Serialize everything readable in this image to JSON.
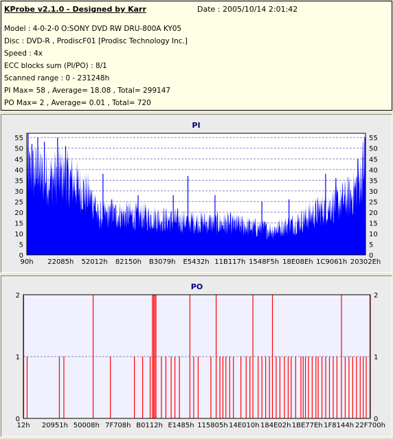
{
  "header": {
    "app_title": "KProbe v2.1.0 - Designed by Karr",
    "date": "Date : 2005/10/14 2:01:42",
    "lines": [
      "Model : 4-0-2-0 O:SONY    DVD RW DRU-800A  KY05",
      "Disc : DVD-R , ProdiscF01 [Prodisc Technology Inc.]",
      "Speed : 4x",
      "ECC blocks sum (PI/PO) : 8/1",
      "Scanned range : 0 - 231248h",
      "PI Max= 58 , Average= 18.08 , Total= 299147",
      "PO Max= 2 , Average= 0.01 , Total= 720"
    ]
  },
  "colors": {
    "pi_fill": "#0000ff",
    "po_bar": "#ff0000",
    "grid": "#8888c0",
    "plot_bg_po": "#f0f0ff",
    "title": "#000080"
  },
  "chart_data": [
    {
      "type": "area",
      "title": "PI",
      "xlabel": "",
      "ylabel": "",
      "ylim": [
        0,
        57
      ],
      "yticks": [
        0,
        5,
        10,
        15,
        20,
        25,
        30,
        35,
        40,
        45,
        50,
        55
      ],
      "x_tick_labels": [
        "90h",
        "22085h",
        "52012h",
        "82150h",
        "B3079h",
        "E5432h",
        "11B117h",
        "1548F5h",
        "18E08Eh",
        "1C9061h",
        "20302Eh"
      ],
      "x_range": [
        0,
        231248
      ],
      "grid": "horizontal dashed",
      "profile": [
        {
          "x": 0,
          "y": 44
        },
        {
          "x": 8000,
          "y": 42
        },
        {
          "x": 16000,
          "y": 40
        },
        {
          "x": 24000,
          "y": 42
        },
        {
          "x": 30000,
          "y": 39
        },
        {
          "x": 36000,
          "y": 35
        },
        {
          "x": 42000,
          "y": 31
        },
        {
          "x": 47000,
          "y": 27
        },
        {
          "x": 48000,
          "y": 20
        },
        {
          "x": 60000,
          "y": 21
        },
        {
          "x": 80000,
          "y": 20
        },
        {
          "x": 100000,
          "y": 18
        },
        {
          "x": 120000,
          "y": 17
        },
        {
          "x": 140000,
          "y": 16
        },
        {
          "x": 158000,
          "y": 14
        },
        {
          "x": 168000,
          "y": 13
        },
        {
          "x": 176000,
          "y": 15
        },
        {
          "x": 185000,
          "y": 17
        },
        {
          "x": 195000,
          "y": 21
        },
        {
          "x": 205000,
          "y": 25
        },
        {
          "x": 215000,
          "y": 28
        },
        {
          "x": 222000,
          "y": 31
        },
        {
          "x": 228000,
          "y": 40
        },
        {
          "x": 231248,
          "y": 52
        }
      ],
      "peaks": [
        {
          "x": 900,
          "y": 57
        },
        {
          "x": 3500,
          "y": 52
        },
        {
          "x": 7500,
          "y": 55
        },
        {
          "x": 12000,
          "y": 53
        },
        {
          "x": 21000,
          "y": 55
        },
        {
          "x": 26500,
          "y": 51
        },
        {
          "x": 52000,
          "y": 38
        },
        {
          "x": 58000,
          "y": 26
        },
        {
          "x": 76000,
          "y": 28
        },
        {
          "x": 100000,
          "y": 28
        },
        {
          "x": 110000,
          "y": 37
        },
        {
          "x": 128500,
          "y": 28
        },
        {
          "x": 160500,
          "y": 25
        },
        {
          "x": 179000,
          "y": 26
        },
        {
          "x": 204000,
          "y": 38
        },
        {
          "x": 211000,
          "y": 36
        },
        {
          "x": 226000,
          "y": 45
        },
        {
          "x": 229500,
          "y": 46
        },
        {
          "x": 230800,
          "y": 55
        }
      ]
    },
    {
      "type": "bar",
      "title": "PO",
      "xlabel": "",
      "ylabel": "",
      "ylim": [
        0,
        2
      ],
      "yticks": [
        0,
        1,
        2
      ],
      "x_tick_labels": [
        "12h",
        "20951h",
        "50008h",
        "7F708h",
        "B0112h",
        "E1485h",
        "115805h",
        "14E010h",
        "184E02h",
        "1BE77Eh",
        "1F8144h",
        "22F700h"
      ],
      "x_range": [
        0,
        231248
      ],
      "grid": "horizontal dashed",
      "events": [
        {
          "x": 200,
          "y": 2
        },
        {
          "x": 2500,
          "y": 1
        },
        {
          "x": 24000,
          "y": 1
        },
        {
          "x": 27000,
          "y": 1
        },
        {
          "x": 46500,
          "y": 2
        },
        {
          "x": 58000,
          "y": 1
        },
        {
          "x": 74000,
          "y": 1
        },
        {
          "x": 79500,
          "y": 1
        },
        {
          "x": 86000,
          "y": 2
        },
        {
          "x": 86800,
          "y": 2
        },
        {
          "x": 87600,
          "y": 2
        },
        {
          "x": 88400,
          "y": 2
        },
        {
          "x": 84500,
          "y": 1
        },
        {
          "x": 92000,
          "y": 1
        },
        {
          "x": 95000,
          "y": 1
        },
        {
          "x": 98500,
          "y": 1
        },
        {
          "x": 101000,
          "y": 1
        },
        {
          "x": 104000,
          "y": 1
        },
        {
          "x": 111000,
          "y": 2
        },
        {
          "x": 113500,
          "y": 1
        },
        {
          "x": 116500,
          "y": 1
        },
        {
          "x": 125000,
          "y": 1
        },
        {
          "x": 128500,
          "y": 2
        },
        {
          "x": 131000,
          "y": 1
        },
        {
          "x": 133000,
          "y": 1
        },
        {
          "x": 135000,
          "y": 1
        },
        {
          "x": 137500,
          "y": 1
        },
        {
          "x": 140000,
          "y": 1
        },
        {
          "x": 145000,
          "y": 1
        },
        {
          "x": 148500,
          "y": 1
        },
        {
          "x": 151000,
          "y": 1
        },
        {
          "x": 153000,
          "y": 2
        },
        {
          "x": 156500,
          "y": 1
        },
        {
          "x": 159000,
          "y": 1
        },
        {
          "x": 161500,
          "y": 1
        },
        {
          "x": 164000,
          "y": 1
        },
        {
          "x": 166000,
          "y": 2
        },
        {
          "x": 168500,
          "y": 1
        },
        {
          "x": 171000,
          "y": 1
        },
        {
          "x": 174000,
          "y": 1
        },
        {
          "x": 176500,
          "y": 1
        },
        {
          "x": 178500,
          "y": 1
        },
        {
          "x": 181500,
          "y": 1
        },
        {
          "x": 185000,
          "y": 1
        },
        {
          "x": 186500,
          "y": 1
        },
        {
          "x": 188000,
          "y": 1
        },
        {
          "x": 190000,
          "y": 1
        },
        {
          "x": 192500,
          "y": 1
        },
        {
          "x": 195000,
          "y": 1
        },
        {
          "x": 196500,
          "y": 1
        },
        {
          "x": 199000,
          "y": 1
        },
        {
          "x": 201500,
          "y": 1
        },
        {
          "x": 204000,
          "y": 1
        },
        {
          "x": 206500,
          "y": 1
        },
        {
          "x": 209000,
          "y": 1
        },
        {
          "x": 212000,
          "y": 2
        },
        {
          "x": 214500,
          "y": 1
        },
        {
          "x": 217000,
          "y": 1
        },
        {
          "x": 219500,
          "y": 1
        },
        {
          "x": 222000,
          "y": 1
        },
        {
          "x": 224500,
          "y": 1
        },
        {
          "x": 226500,
          "y": 1
        },
        {
          "x": 228500,
          "y": 1
        },
        {
          "x": 231000,
          "y": 2
        }
      ]
    }
  ]
}
